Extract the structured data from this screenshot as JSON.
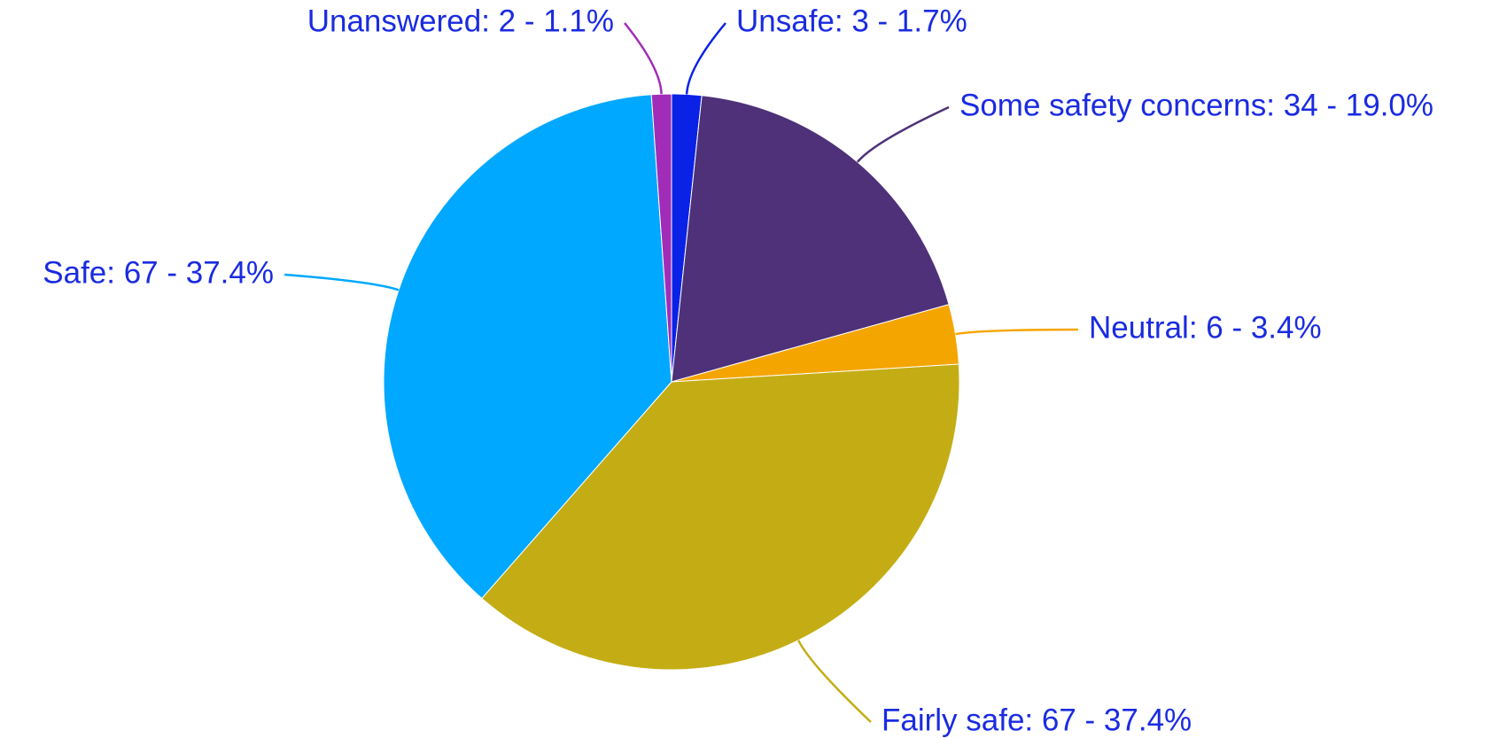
{
  "chart_data": {
    "type": "pie",
    "values": [
      3,
      34,
      6,
      67,
      67,
      2
    ],
    "value_labels": [
      "Unsafe: 3 - 1.7%",
      "Some safety concerns: 34 - 19.0%",
      "Neutral: 6 - 3.4%",
      "Fairly safe: 67 - 37.4%",
      "Safe: 67 - 37.4%",
      "Unanswered: 2 - 1.1%"
    ],
    "colors": [
      "#0a22e6",
      "#4e3179",
      "#f5a500",
      "#c4ad14",
      "#00a8ff",
      "#a12cb8"
    ]
  }
}
